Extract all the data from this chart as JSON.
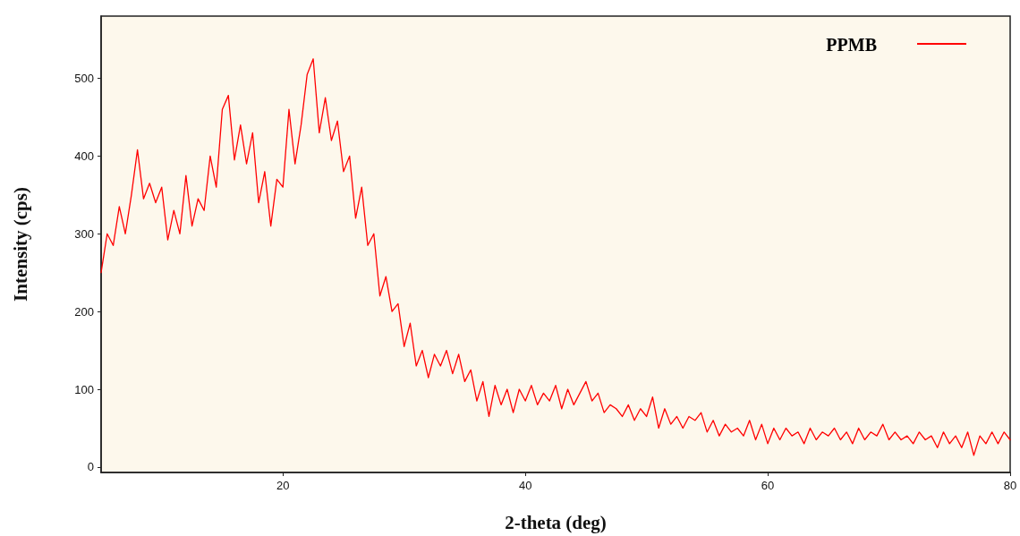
{
  "chart_data": {
    "type": "line",
    "xlabel": "2-theta (deg)",
    "ylabel": "Intensity (cps)",
    "xlim": [
      5,
      80
    ],
    "xticks": [
      20,
      40,
      60,
      80
    ],
    "ylim": [
      -7,
      580
    ],
    "yticks": [
      0,
      100,
      200,
      300,
      400,
      500
    ],
    "grid": false,
    "legend": "top right",
    "marker": "none",
    "line_style": "solid",
    "series": [
      {
        "name": "PPMB",
        "color": "#ff0000",
        "x": [
          5,
          5.5,
          6,
          6.5,
          7,
          7.5,
          8,
          8.5,
          9,
          9.5,
          10,
          10.5,
          11,
          11.5,
          12,
          12.5,
          13,
          13.5,
          14,
          14.5,
          15,
          15.5,
          16,
          16.5,
          17,
          17.5,
          18,
          18.5,
          19,
          19.5,
          20,
          20.5,
          21,
          21.5,
          22,
          22.5,
          23,
          23.5,
          24,
          24.5,
          25,
          25.5,
          26,
          26.5,
          27,
          27.5,
          28,
          28.5,
          29,
          29.5,
          30,
          30.5,
          31,
          31.5,
          32,
          32.5,
          33,
          33.5,
          34,
          34.5,
          35,
          35.5,
          36,
          36.5,
          37,
          37.5,
          38,
          38.5,
          39,
          39.5,
          40,
          40.5,
          41,
          41.5,
          42,
          42.5,
          43,
          43.5,
          44,
          44.5,
          45,
          45.5,
          46,
          46.5,
          47,
          47.5,
          48,
          48.5,
          49,
          49.5,
          50,
          50.5,
          51,
          51.5,
          52,
          52.5,
          53,
          53.5,
          54,
          54.5,
          55,
          55.5,
          56,
          56.5,
          57,
          57.5,
          58,
          58.5,
          59,
          59.5,
          60,
          60.5,
          61,
          61.5,
          62,
          62.5,
          63,
          63.5,
          64,
          64.5,
          65,
          65.5,
          66,
          66.5,
          67,
          67.5,
          68,
          68.5,
          69,
          69.5,
          70,
          70.5,
          71,
          71.5,
          72,
          72.5,
          73,
          73.5,
          74,
          74.5,
          75,
          75.5,
          76,
          76.5,
          77,
          77.5,
          78,
          78.5,
          79,
          79.5,
          80
        ],
        "values": [
          250,
          300,
          285,
          335,
          300,
          350,
          408,
          345,
          365,
          340,
          360,
          292,
          330,
          300,
          375,
          310,
          345,
          330,
          400,
          360,
          460,
          478,
          395,
          440,
          390,
          430,
          340,
          380,
          310,
          370,
          360,
          460,
          390,
          440,
          505,
          525,
          430,
          475,
          420,
          445,
          380,
          400,
          320,
          360,
          285,
          300,
          220,
          245,
          200,
          210,
          155,
          185,
          130,
          150,
          115,
          145,
          130,
          150,
          120,
          145,
          110,
          125,
          85,
          110,
          65,
          105,
          80,
          100,
          70,
          100,
          85,
          105,
          80,
          95,
          85,
          105,
          75,
          100,
          80,
          95,
          110,
          85,
          95,
          70,
          80,
          75,
          65,
          80,
          60,
          75,
          65,
          90,
          50,
          75,
          55,
          65,
          50,
          65,
          60,
          70,
          45,
          60,
          40,
          55,
          45,
          50,
          40,
          60,
          35,
          55,
          30,
          50,
          35,
          50,
          40,
          45,
          30,
          50,
          35,
          45,
          40,
          50,
          35,
          45,
          30,
          50,
          35,
          45,
          40,
          55,
          35,
          45,
          35,
          40,
          30,
          45,
          35,
          40,
          25,
          45,
          30,
          40,
          25,
          45,
          15,
          40,
          30,
          45,
          30,
          45,
          35
        ]
      }
    ]
  }
}
